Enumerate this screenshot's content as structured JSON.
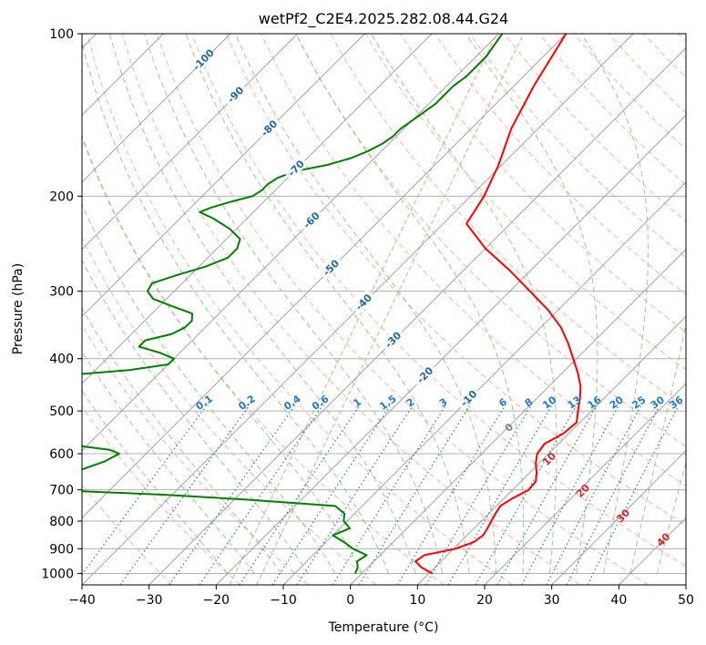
{
  "chart_data": {
    "type": "line",
    "subtype": "skew-t log-p diagram",
    "title": "wetPf2_C2E4.2025.282.08.44.G24",
    "xlabel": "Temperature (°C)",
    "ylabel": "Pressure (hPa)",
    "xlim": [
      -40,
      50
    ],
    "ylim": [
      1050,
      100
    ],
    "y_scale": "log",
    "x_ticks": [
      -40,
      -30,
      -20,
      -10,
      0,
      10,
      20,
      30,
      40,
      50
    ],
    "y_ticks": [
      100,
      200,
      300,
      400,
      500,
      600,
      700,
      800,
      900,
      1000
    ],
    "x_tick_labels": [
      "−40",
      "−30",
      "−20",
      "−10",
      "0",
      "10",
      "20",
      "30",
      "40",
      "50"
    ],
    "y_tick_labels": [
      "100",
      "200",
      "300",
      "400",
      "500",
      "600",
      "700",
      "800",
      "900",
      "1000"
    ],
    "grid": true,
    "colors": {
      "temperature": "#ff0000",
      "dewpoint": "#008000",
      "isotherm": "#999999",
      "dry_adiabat": "#ff9977",
      "moist_adiabat": "#88c088",
      "mixing_ratio": "#1f77d4",
      "isotherm_label": "#1f6aa5",
      "moist_label": "#d62728",
      "zero_label": "#7f7f7f",
      "ice_curve": "#d2b48c"
    },
    "series": [
      {
        "key": "temperature",
        "pressure": [
          1000,
          975,
          950,
          925,
          900,
          875,
          850,
          825,
          800,
          775,
          750,
          725,
          700,
          675,
          650,
          625,
          600,
          575,
          550,
          525,
          500,
          475,
          450,
          425,
          400,
          375,
          350,
          325,
          300,
          275,
          250,
          225,
          200,
          175,
          150,
          125,
          100
        ],
        "values": [
          10.5,
          8.0,
          6.2,
          6.6,
          10.3,
          12.0,
          12.4,
          12.0,
          11.5,
          11.0,
          10.6,
          11.3,
          12.4,
          12.2,
          11.0,
          9.5,
          8.3,
          7.9,
          9.2,
          9.5,
          8.0,
          6.5,
          4.7,
          2.3,
          -0.5,
          -3.5,
          -7.0,
          -11.5,
          -17.0,
          -23.0,
          -30.0,
          -36.5,
          -38.0,
          -40.5,
          -44.0,
          -47.0,
          -50.0
        ]
      },
      {
        "key": "dewpoint",
        "pressure": [
          1000,
          975,
          950,
          925,
          900,
          875,
          850,
          825,
          800,
          775,
          750,
          730,
          715,
          700,
          690,
          675,
          660,
          640,
          620,
          600,
          590,
          575,
          572,
          560,
          540,
          520,
          500,
          485,
          475,
          465,
          460,
          455,
          450,
          440,
          430,
          420,
          410,
          400,
          390,
          380,
          370,
          360,
          350,
          340,
          330,
          320,
          310,
          300,
          290,
          280,
          270,
          260,
          250,
          240,
          230,
          220,
          214,
          210,
          205,
          200,
          195,
          190,
          185,
          180,
          175,
          170,
          165,
          160,
          155,
          150,
          145,
          140,
          135,
          130,
          125,
          120,
          115,
          110,
          105,
          100
        ],
        "values": [
          -1.0,
          -1.5,
          -2.5,
          -2.0,
          -5.0,
          -7.3,
          -10.0,
          -8.5,
          -10.5,
          -11.5,
          -14.0,
          -28.0,
          -41.0,
          -59.0,
          -67.0,
          -66.0,
          -62.0,
          -57.0,
          -55.0,
          -54.0,
          -56.0,
          -64.0,
          -120.0,
          -118.0,
          -112.0,
          -105.0,
          -95.0,
          -90.0,
          -90.5,
          -90.0,
          -85.0,
          -88.0,
          -88.0,
          -83.0,
          -74.0,
          -65.0,
          -60.0,
          -60.0,
          -63.0,
          -67.0,
          -67.0,
          -64.0,
          -63.0,
          -63.0,
          -64.0,
          -68.0,
          -72.0,
          -74.0,
          -74.5,
          -72.0,
          -69.0,
          -67.0,
          -67.0,
          -68.0,
          -71.0,
          -75.0,
          -78.0,
          -77.0,
          -75.0,
          -72.5,
          -72.0,
          -72.0,
          -71.5,
          -70.0,
          -66.0,
          -63.5,
          -62.0,
          -61.0,
          -60.5,
          -60.5,
          -60.0,
          -59.5,
          -59.0,
          -59.0,
          -59.0,
          -58.5,
          -58.5,
          -58.5,
          -59.0,
          -59.5
        ]
      }
    ],
    "annotations": {
      "isotherm_labels": [
        "-100",
        "-90",
        "-80",
        "-70",
        "-60",
        "-50",
        "-40",
        "-30",
        "-20",
        "-10"
      ],
      "isotherm_label_temps": [
        -100,
        -90,
        -80,
        -70,
        -60,
        -50,
        -40,
        -30,
        -20,
        -10
      ],
      "mixing_ratio_labels": [
        "0.1",
        "0.2",
        "0.4",
        "0.6",
        "1",
        "1.5",
        "2",
        "3",
        "4",
        "6",
        "8",
        "10",
        "13",
        "16",
        "20",
        "25",
        "30",
        "36"
      ],
      "mixing_ratio_values": [
        0.1,
        0.2,
        0.4,
        0.6,
        1,
        1.5,
        2,
        3,
        4,
        6,
        8,
        10,
        13,
        16,
        20,
        25,
        30,
        36
      ],
      "moist_adiabat_labels": [
        "0",
        "10",
        "20",
        "30",
        "40"
      ],
      "moist_adiabat_temps": [
        0,
        10,
        20,
        30,
        40
      ]
    }
  }
}
